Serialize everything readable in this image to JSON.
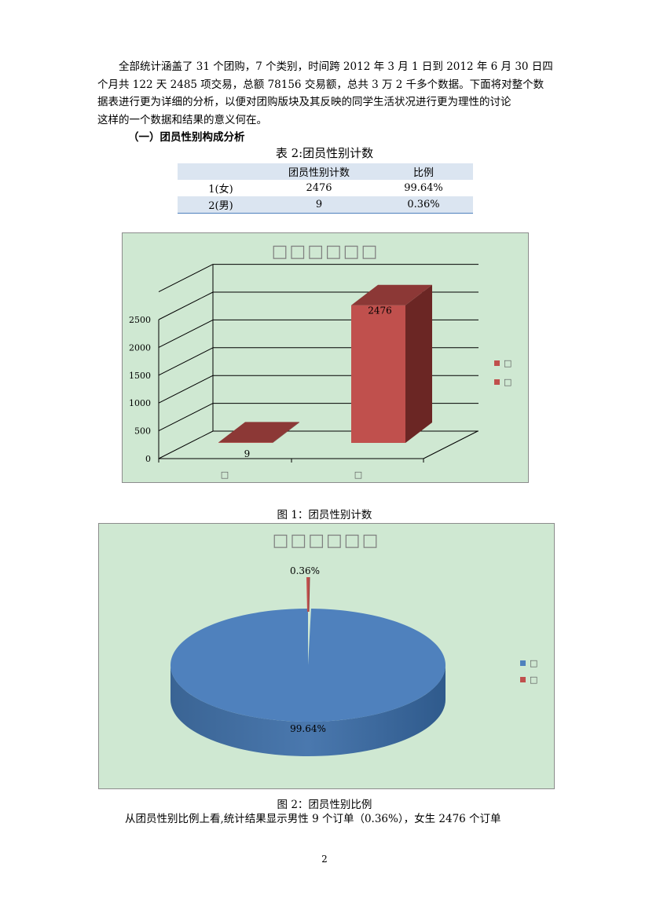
{
  "body": {
    "intro_lines": [
      "全部统计涵盖了 31 个团购，7 个类别，时间跨 2012 年 3 月 1 日到 2012 年 6 月 30 日四",
      "个月共 122 天 2485 项交易，总额 78156 交易额，总共 3 万 2 千多个数据。下面将对整个数",
      "据表进行更为详细的分析，以便对团购版块及其反映的同学生活状况进行更为理性的讨论",
      "这样的一个数据和结果的意义何在。"
    ],
    "section_heading": "（一）团员性别构成分析",
    "conclusion": "从团员性别比例上看,统计结果显示男性 9 个订单（0.36%），女生 2476 个订单"
  },
  "table": {
    "caption": "表 2:团员性别计数",
    "headers": [
      "",
      "团员性别计数",
      "比例"
    ],
    "rows": [
      [
        "1(女)",
        "2476",
        "99.64%"
      ],
      [
        "2(男)",
        "9",
        "0.36%"
      ]
    ]
  },
  "figure1": {
    "caption": "图 1：团员性别计数",
    "title_glyphs": "□□□□□□",
    "legend_glyphs": [
      "□",
      "□"
    ],
    "category_glyphs": [
      "□",
      "□"
    ]
  },
  "figure2": {
    "caption": "图 2：团员性别比例",
    "title_glyphs": "□□□□□□",
    "legend_glyphs": [
      "□",
      "□"
    ]
  },
  "page_number": "2",
  "colors": {
    "chart_bg": "#cfe8d2",
    "bar_red": "#c0504d",
    "pie_blue": "#4f81bd",
    "table_header": "#dbe5f1"
  },
  "chart_data": [
    {
      "type": "bar",
      "categories": [
        "□",
        "□"
      ],
      "values": [
        9,
        2476
      ],
      "data_labels": [
        "9",
        "2476"
      ],
      "title": "□□□□□□",
      "yticks": [
        "0",
        "500",
        "1000",
        "1500",
        "2000",
        "2500"
      ],
      "ylim": [
        0,
        3000
      ],
      "grid": true,
      "legend": "right",
      "style": "3d"
    },
    {
      "type": "pie",
      "values": [
        99.64,
        0.36
      ],
      "data_labels": [
        "99.64%",
        "0.36%"
      ],
      "title": "□□□□□□",
      "legend": "right",
      "style": "3d"
    }
  ]
}
